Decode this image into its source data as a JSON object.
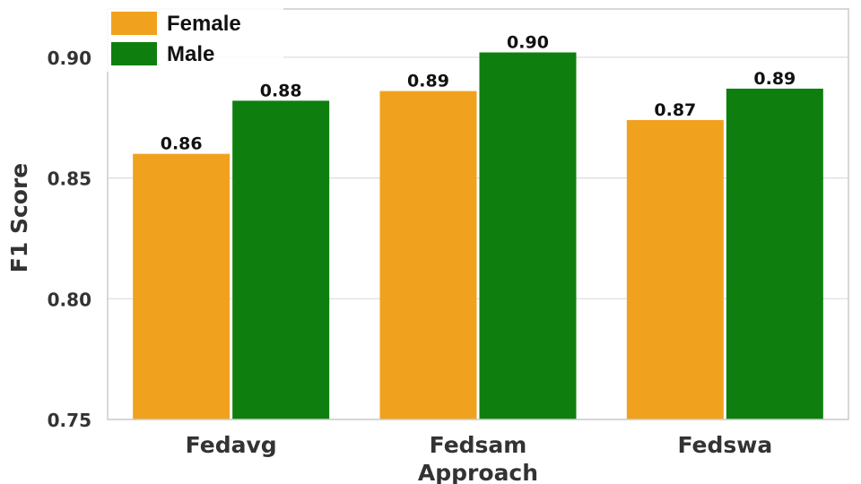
{
  "chart_data": {
    "type": "bar",
    "title": "",
    "xlabel": "Approach",
    "ylabel": "F1 Score",
    "categories": [
      "Fedavg",
      "Fedsam",
      "Fedswa"
    ],
    "series": [
      {
        "name": "Female",
        "color": "#F0A21E",
        "values": [
          0.86,
          0.886,
          0.874
        ],
        "labels": [
          "0.86",
          "0.89",
          "0.87"
        ]
      },
      {
        "name": "Male",
        "color": "#0E7F0E",
        "values": [
          0.882,
          0.902,
          0.887
        ],
        "labels": [
          "0.88",
          "0.90",
          "0.89"
        ]
      }
    ],
    "ylim": [
      0.75,
      0.92
    ],
    "yticks": [
      0.75,
      0.8,
      0.85,
      0.9
    ],
    "ytick_labels": [
      "0.75",
      "0.80",
      "0.85",
      "0.90"
    ],
    "grid": true,
    "legend": "top-left"
  }
}
